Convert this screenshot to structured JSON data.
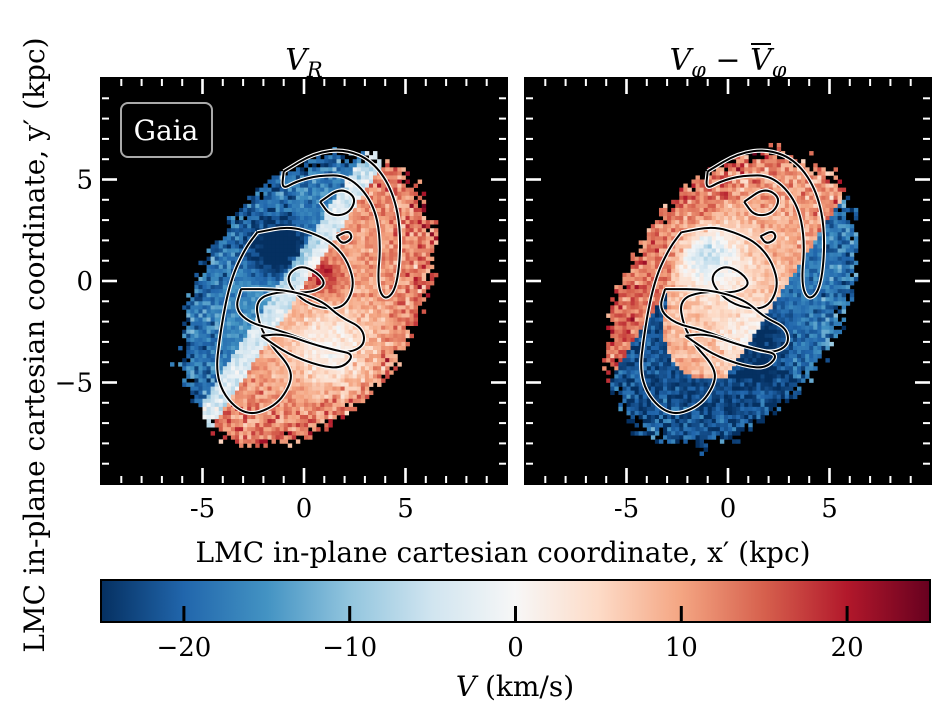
{
  "chart_data": {
    "type": "heatmap",
    "xlabel": "LMC in-plane cartesian coordinate, x′ (kpc)",
    "ylabel": "LMC in-plane cartesian coordinate, y′ (kpc)",
    "xlim": [
      -10,
      10
    ],
    "ylim": [
      -10,
      10
    ],
    "x_ticks": [
      -5,
      0,
      5
    ],
    "y_ticks": [
      5,
      0,
      -5
    ],
    "x_tick_labels": [
      "-5",
      "0",
      "5"
    ],
    "y_tick_labels": [
      "5",
      "0",
      "−5"
    ],
    "grid": false,
    "background": "#000000",
    "panels": [
      {
        "id": "vr",
        "title": "V_R",
        "title_main": "V",
        "title_sub": "R",
        "badge": "Gaia"
      },
      {
        "id": "vphi",
        "title": "V_φ − V̄_φ",
        "title_main": "V",
        "title_sub": "φ",
        "title_minus": " − ",
        "title_main2": "V",
        "title_sub2": "φ",
        "badge": ""
      }
    ],
    "colorbar": {
      "label": "V (km/s)",
      "label_main": "V",
      "label_units": " (km/s)",
      "range": [
        -25,
        25
      ],
      "ticks": [
        -20,
        -10,
        0,
        10,
        20
      ],
      "tick_labels": [
        "−20",
        "−10",
        "0",
        "10",
        "20"
      ],
      "colormap": "RdBu_r",
      "colors": [
        "#053061",
        "#2166ac",
        "#4393c3",
        "#92c5de",
        "#d1e5f0",
        "#f7f7f7",
        "#fddbc7",
        "#f4a582",
        "#d6604d",
        "#b2182b",
        "#67001f"
      ]
    }
  }
}
